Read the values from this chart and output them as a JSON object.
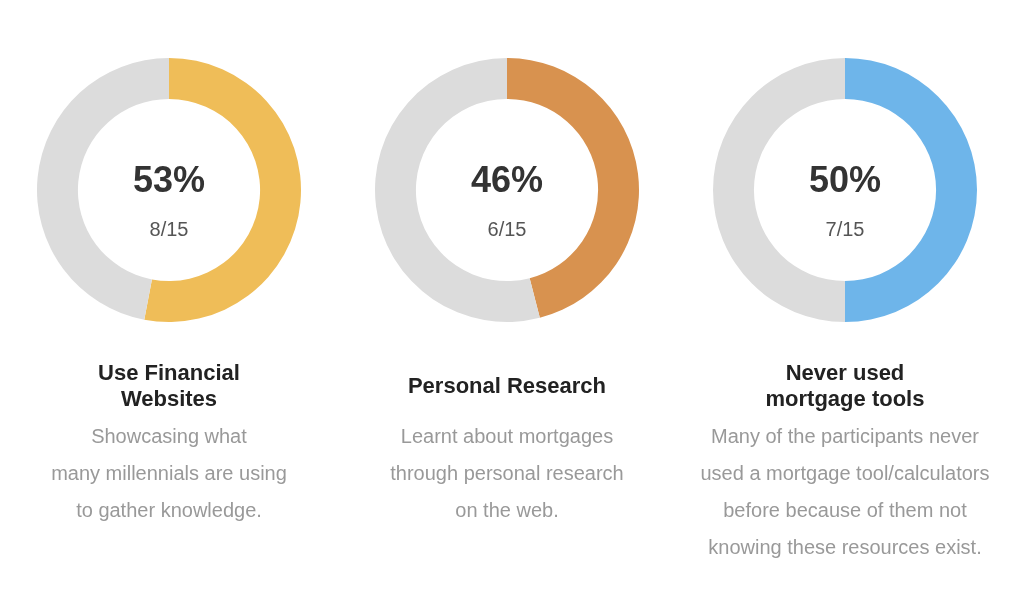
{
  "chart_data": [
    {
      "type": "donut",
      "title": "Use Financial\nWebsites",
      "subtitle": "Showcasing what\nmany millennials are using\nto gather knowledge.",
      "categories": [
        null,
        null
      ],
      "values": [
        53,
        47
      ],
      "colors": [
        "#efbd58",
        "#dcdcdc"
      ],
      "annotations": [
        "53%",
        "8/15"
      ],
      "legend": false
    },
    {
      "type": "donut",
      "title": "Personal Research",
      "subtitle": "Learnt about mortgages\nthrough personal research\non the web.",
      "categories": [
        null,
        null
      ],
      "values": [
        46,
        54
      ],
      "colors": [
        "#d8924f",
        "#dcdcdc"
      ],
      "annotations": [
        "46%",
        "6/15"
      ],
      "legend": false
    },
    {
      "type": "donut",
      "title": "Never used\nmortgage tools",
      "subtitle": "Many of the participants never\nused a mortgage tool/calculators\nbefore because of them not\nknowing these resources exist.",
      "categories": [
        null,
        null
      ],
      "values": [
        50,
        50
      ],
      "colors": [
        "#6eb5ea",
        "#dcdcdc"
      ],
      "annotations": [
        "50%",
        "7/15"
      ],
      "legend": false
    }
  ]
}
